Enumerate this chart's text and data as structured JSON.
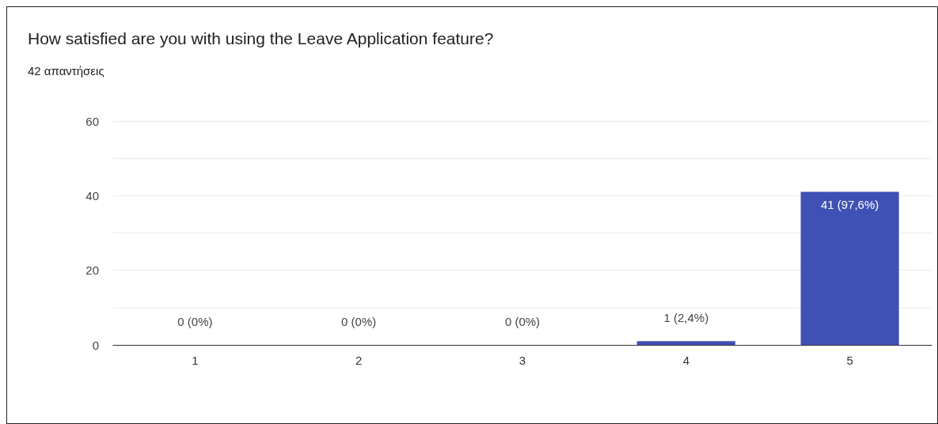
{
  "chart_data": {
    "type": "bar",
    "title": "How satisfied are you with using the Leave Application feature?",
    "subtitle": "42 απαντήσεις",
    "categories": [
      "1",
      "2",
      "3",
      "4",
      "5"
    ],
    "values": [
      0,
      0,
      0,
      1,
      41
    ],
    "value_labels": [
      "0 (0%)",
      "0 (0%)",
      "0 (0%)",
      "1 (2,4%)",
      "41 (97,6%)"
    ],
    "color": "#3f51b5",
    "ylim": [
      0,
      60
    ],
    "yticks": [
      0,
      {
        "value": 10,
        "label": null
      },
      20,
      {
        "value": 30,
        "label": null
      },
      40,
      {
        "value": 50,
        "label": null
      },
      60
    ],
    "grid": "y"
  }
}
